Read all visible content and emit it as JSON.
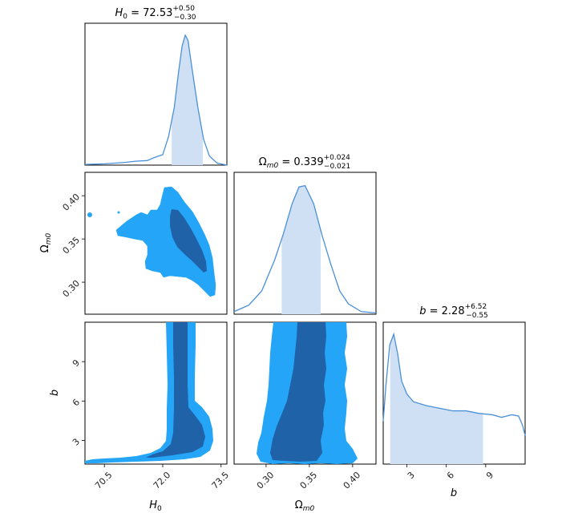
{
  "chart_data": {
    "type": "corner",
    "parameters": [
      {
        "symbol": "H",
        "sub": "0",
        "range": [
          70.0,
          73.65
        ],
        "ticks": [
          "70.5",
          "72.0",
          "73.5"
        ],
        "tick_values": [
          70.5,
          72.0,
          73.5
        ],
        "title": {
          "median": "72.53",
          "plus": "+0.50",
          "minus": "−0.30"
        }
      },
      {
        "symbol": "Ω",
        "sub": "m0",
        "range": [
          0.263,
          0.427
        ],
        "ticks": [
          "0.30",
          "0.35",
          "0.40"
        ],
        "tick_values": [
          0.3,
          0.35,
          0.4
        ],
        "title": {
          "median": "0.339",
          "plus": "+0.024",
          "minus": "−0.021"
        }
      },
      {
        "symbol": "b",
        "sub": "",
        "range": [
          1.2,
          12.0
        ],
        "ticks": [
          "3",
          "6",
          "9"
        ],
        "tick_values": [
          3,
          6,
          9
        ],
        "title": {
          "median": "2.28",
          "plus": "+6.52",
          "minus": "−0.55"
        }
      }
    ],
    "marginals": [
      {
        "param": 0,
        "x": [
          70.0,
          70.5,
          71.0,
          71.3,
          71.6,
          71.8,
          72.0,
          72.15,
          72.3,
          72.4,
          72.5,
          72.58,
          72.65,
          72.75,
          72.9,
          73.05,
          73.2,
          73.4,
          73.65
        ],
        "y": [
          0.005,
          0.01,
          0.02,
          0.03,
          0.035,
          0.06,
          0.08,
          0.22,
          0.45,
          0.7,
          0.92,
          1.0,
          0.96,
          0.75,
          0.45,
          0.2,
          0.07,
          0.015,
          0.0
        ],
        "interval": [
          72.23,
          73.03
        ]
      },
      {
        "param": 1,
        "x": [
          0.263,
          0.28,
          0.295,
          0.31,
          0.32,
          0.33,
          0.338,
          0.345,
          0.355,
          0.365,
          0.375,
          0.385,
          0.395,
          0.41,
          0.427
        ],
        "y": [
          0.02,
          0.07,
          0.18,
          0.42,
          0.62,
          0.85,
          0.98,
          0.99,
          0.85,
          0.6,
          0.38,
          0.18,
          0.08,
          0.02,
          0.01
        ],
        "interval": [
          0.318,
          0.363
        ]
      },
      {
        "param": 2,
        "x": [
          1.2,
          1.4,
          1.7,
          2.0,
          2.3,
          2.6,
          3.0,
          3.5,
          4.5,
          5.5,
          6.5,
          7.5,
          8.5,
          9.5,
          10.2,
          11.0,
          11.5,
          11.8,
          12.0
        ],
        "y": [
          0.33,
          0.6,
          0.92,
          1.0,
          0.85,
          0.64,
          0.54,
          0.48,
          0.45,
          0.43,
          0.41,
          0.41,
          0.39,
          0.38,
          0.36,
          0.38,
          0.37,
          0.3,
          0.22
        ],
        "interval": [
          1.73,
          8.8
        ]
      }
    ],
    "colors": {
      "inner": "#1f62a8",
      "outer": "#25a5f8",
      "band": "#cfe0f5",
      "line": "#4a90d9"
    }
  }
}
